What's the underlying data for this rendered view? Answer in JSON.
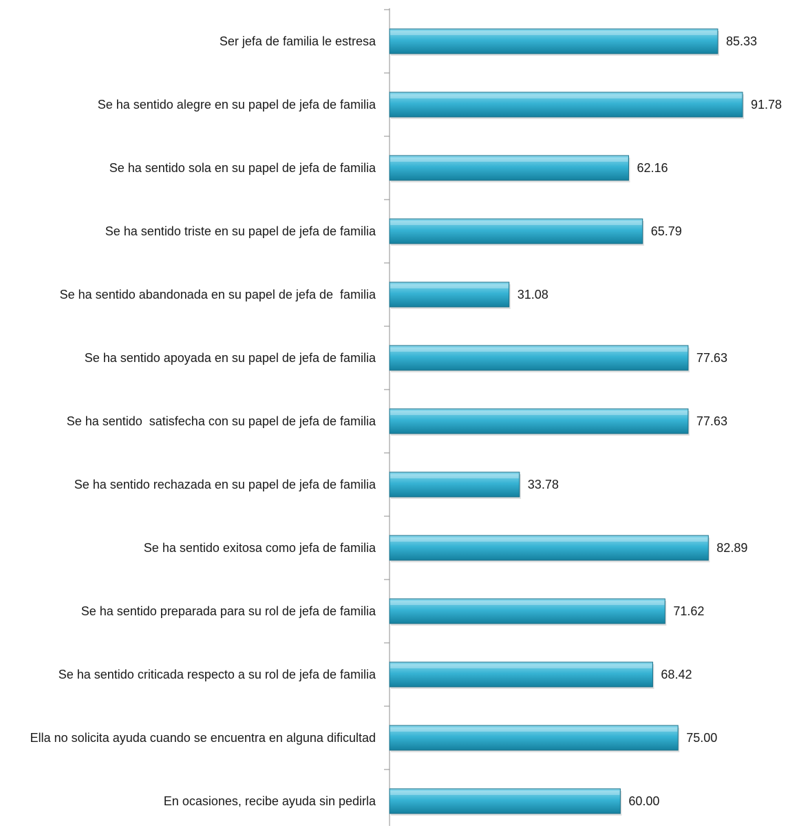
{
  "chart_data": {
    "type": "bar",
    "orientation": "horizontal",
    "categories": [
      "Ser jefa de familia le estresa",
      "Se ha sentido alegre en su papel de jefa de familia",
      "Se ha sentido sola en su papel de jefa de familia",
      "Se ha sentido triste en su papel de jefa de familia",
      "Se ha sentido abandonada en su papel de jefa de  familia",
      "Se ha sentido apoyada en su papel de jefa de familia",
      "Se ha sentido  satisfecha con su papel de jefa de familia",
      "Se ha sentido rechazada en su papel de jefa de familia",
      "Se ha sentido exitosa como jefa de familia",
      "Se ha sentido preparada para su rol de jefa de familia",
      "Se ha sentido criticada respecto a su rol de jefa de familia",
      "Ella no solicita ayuda cuando se encuentra en alguna dificultad",
      "En ocasiones, recibe ayuda sin pedirla"
    ],
    "values": [
      85.33,
      91.78,
      62.16,
      65.79,
      31.08,
      77.63,
      77.63,
      33.78,
      82.89,
      71.62,
      68.42,
      75.0,
      60.0
    ],
    "value_labels": [
      "85.33",
      "91.78",
      "62.16",
      "65.79",
      "31.08",
      "77.63",
      "77.63",
      "33.78",
      "82.89",
      "71.62",
      "68.42",
      "75.00",
      "60.00"
    ],
    "title": "",
    "xlabel": "",
    "ylabel": "",
    "xlim": [
      0,
      100
    ],
    "grid": false,
    "legend": "none",
    "colors": {
      "bar_light": "#8ad8ec",
      "bar_mid": "#37b3d4",
      "bar_dark": "#15809e",
      "bar_edge": "#1b6f87",
      "axis": "#8c8c8c",
      "text": "#1a1a1a"
    }
  }
}
